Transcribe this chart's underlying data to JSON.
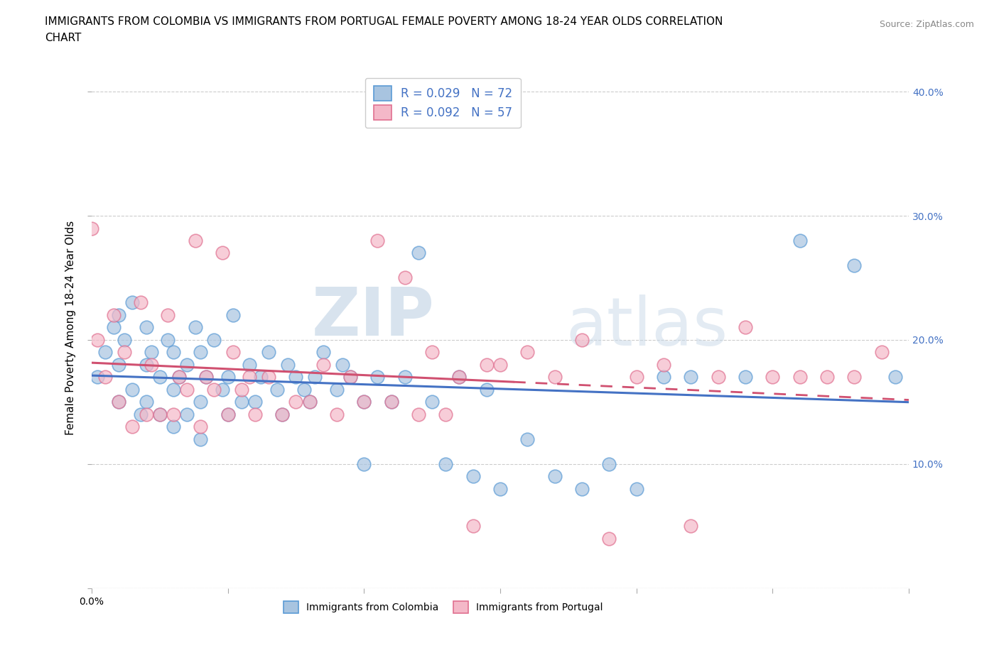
{
  "title_line1": "IMMIGRANTS FROM COLOMBIA VS IMMIGRANTS FROM PORTUGAL FEMALE POVERTY AMONG 18-24 YEAR OLDS CORRELATION",
  "title_line2": "CHART",
  "source_text": "Source: ZipAtlas.com",
  "ylabel": "Female Poverty Among 18-24 Year Olds",
  "xlim": [
    0.0,
    0.3
  ],
  "ylim": [
    0.0,
    0.42
  ],
  "xticks": [
    0.0,
    0.05,
    0.1,
    0.15,
    0.2,
    0.25,
    0.3
  ],
  "yticks": [
    0.0,
    0.1,
    0.2,
    0.3,
    0.4
  ],
  "colombia_color": "#a8c4e0",
  "portugal_color": "#f4b8c8",
  "colombia_edge_color": "#5b9bd5",
  "portugal_edge_color": "#e07090",
  "colombia_line_color": "#4472c4",
  "portugal_line_color": "#d05070",
  "colombia_R": 0.029,
  "colombia_N": 72,
  "portugal_R": 0.092,
  "portugal_N": 57,
  "watermark_zip": "ZIP",
  "watermark_atlas": "atlas",
  "background_color": "#ffffff",
  "grid_color": "#cccccc",
  "title_fontsize": 11,
  "axis_label_fontsize": 11,
  "tick_fontsize": 10,
  "legend_fontsize": 12,
  "right_tick_color": "#4472c4",
  "colombia_scatter_x": [
    0.002,
    0.005,
    0.008,
    0.01,
    0.01,
    0.01,
    0.012,
    0.015,
    0.015,
    0.018,
    0.02,
    0.02,
    0.02,
    0.022,
    0.025,
    0.025,
    0.028,
    0.03,
    0.03,
    0.03,
    0.032,
    0.035,
    0.035,
    0.038,
    0.04,
    0.04,
    0.04,
    0.042,
    0.045,
    0.048,
    0.05,
    0.05,
    0.052,
    0.055,
    0.058,
    0.06,
    0.062,
    0.065,
    0.068,
    0.07,
    0.072,
    0.075,
    0.078,
    0.08,
    0.082,
    0.085,
    0.09,
    0.092,
    0.095,
    0.1,
    0.1,
    0.105,
    0.11,
    0.115,
    0.12,
    0.125,
    0.13,
    0.135,
    0.14,
    0.145,
    0.15,
    0.16,
    0.17,
    0.18,
    0.19,
    0.2,
    0.21,
    0.22,
    0.24,
    0.26,
    0.28,
    0.295
  ],
  "colombia_scatter_y": [
    0.17,
    0.19,
    0.21,
    0.15,
    0.18,
    0.22,
    0.2,
    0.16,
    0.23,
    0.14,
    0.15,
    0.18,
    0.21,
    0.19,
    0.14,
    0.17,
    0.2,
    0.13,
    0.16,
    0.19,
    0.17,
    0.14,
    0.18,
    0.21,
    0.12,
    0.15,
    0.19,
    0.17,
    0.2,
    0.16,
    0.14,
    0.17,
    0.22,
    0.15,
    0.18,
    0.15,
    0.17,
    0.19,
    0.16,
    0.14,
    0.18,
    0.17,
    0.16,
    0.15,
    0.17,
    0.19,
    0.16,
    0.18,
    0.17,
    0.1,
    0.15,
    0.17,
    0.15,
    0.17,
    0.27,
    0.15,
    0.1,
    0.17,
    0.09,
    0.16,
    0.08,
    0.12,
    0.09,
    0.08,
    0.1,
    0.08,
    0.17,
    0.17,
    0.17,
    0.28,
    0.26,
    0.17
  ],
  "portugal_scatter_x": [
    0.002,
    0.005,
    0.008,
    0.01,
    0.012,
    0.015,
    0.018,
    0.02,
    0.022,
    0.025,
    0.028,
    0.03,
    0.032,
    0.035,
    0.038,
    0.04,
    0.042,
    0.045,
    0.048,
    0.05,
    0.052,
    0.055,
    0.058,
    0.06,
    0.065,
    0.07,
    0.075,
    0.08,
    0.085,
    0.09,
    0.095,
    0.1,
    0.105,
    0.11,
    0.115,
    0.12,
    0.125,
    0.13,
    0.135,
    0.14,
    0.145,
    0.15,
    0.16,
    0.17,
    0.18,
    0.19,
    0.2,
    0.21,
    0.22,
    0.23,
    0.24,
    0.25,
    0.26,
    0.27,
    0.28,
    0.29,
    0.0
  ],
  "portugal_scatter_y": [
    0.2,
    0.17,
    0.22,
    0.15,
    0.19,
    0.13,
    0.23,
    0.14,
    0.18,
    0.14,
    0.22,
    0.14,
    0.17,
    0.16,
    0.28,
    0.13,
    0.17,
    0.16,
    0.27,
    0.14,
    0.19,
    0.16,
    0.17,
    0.14,
    0.17,
    0.14,
    0.15,
    0.15,
    0.18,
    0.14,
    0.17,
    0.15,
    0.28,
    0.15,
    0.25,
    0.14,
    0.19,
    0.14,
    0.17,
    0.05,
    0.18,
    0.18,
    0.19,
    0.17,
    0.2,
    0.04,
    0.17,
    0.18,
    0.05,
    0.17,
    0.21,
    0.17,
    0.17,
    0.17,
    0.17,
    0.19,
    0.29
  ]
}
